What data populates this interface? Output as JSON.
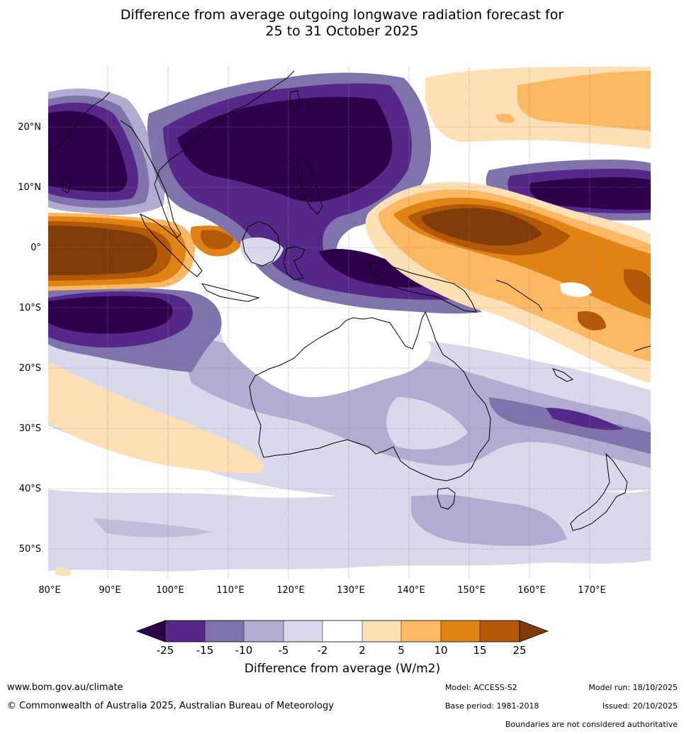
{
  "title_line1": "Difference from average outgoing longwave radiation forecast for",
  "title_line2": "25 to 31 October 2025",
  "axes": {
    "lat_labels": [
      "20°N",
      "10°N",
      "0°",
      "10°S",
      "20°S",
      "30°S",
      "40°S",
      "50°S"
    ],
    "lon_labels": [
      "80°E",
      "90°E",
      "100°E",
      "110°E",
      "120°E",
      "130°E",
      "140°E",
      "150°E",
      "160°E",
      "170°E"
    ],
    "lat_range": [
      -55,
      30
    ],
    "lon_range": [
      80,
      180
    ]
  },
  "colorbar": {
    "ticks": [
      "-25",
      "-15",
      "-10",
      "-5",
      "-2",
      "2",
      "5",
      "10",
      "15",
      "25"
    ],
    "colors": [
      "#2d004b",
      "#542788",
      "#8073ac",
      "#b2abd2",
      "#d8daeb",
      "#ffffff",
      "#fee0b6",
      "#fdb863",
      "#e08214",
      "#b35806",
      "#7f3b08"
    ],
    "label": "Difference from average (W/m2)"
  },
  "footer": {
    "website": "www.bom.gov.au/climate",
    "copyright": "© Commonwealth of Australia 2025, Australian Bureau of Meteorology",
    "model": "Model: ACCESS-S2",
    "base_period": "Base period: 1981-2018",
    "model_run": "Model run: 18/10/2025",
    "issued": "Issued: 20/10/2025",
    "disclaimer": "Boundaries are not considered authoritative"
  }
}
